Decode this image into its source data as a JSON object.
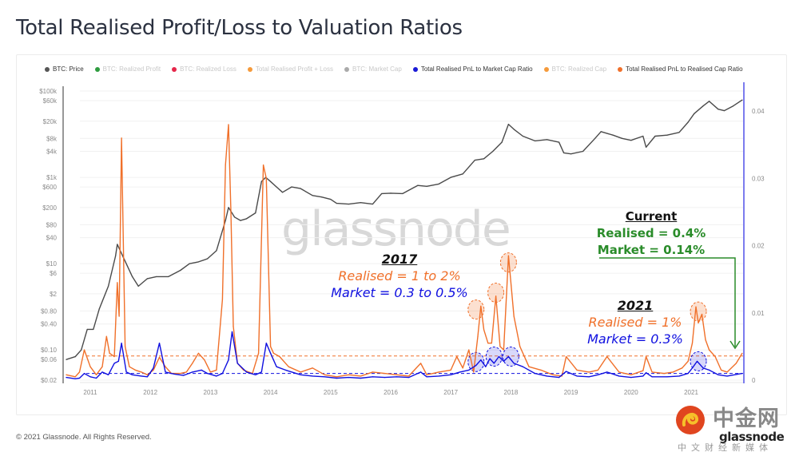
{
  "header": {
    "title": "Total Realised Profit/Loss to Valuation Ratios"
  },
  "legend": [
    {
      "label": "BTC: Price",
      "color": "#555555",
      "active": true
    },
    {
      "label": "BTC: Realized Profit",
      "color": "#2e9b3f",
      "active": false
    },
    {
      "label": "BTC: Realized Loss",
      "color": "#e5264a",
      "active": false
    },
    {
      "label": "Total Realised Profit + Loss",
      "color": "#f59a3b",
      "active": false
    },
    {
      "label": "BTC: Market Cap",
      "color": "#aaaaaa",
      "active": false
    },
    {
      "label": "Total Realised PnL to Market Cap Ratio",
      "color": "#1a1ad6",
      "active": true
    },
    {
      "label": "BTC: Realized Cap",
      "color": "#f59a3b",
      "active": false
    },
    {
      "label": "Total Realised PnL to Realised Cap Ratio",
      "color": "#f0702a",
      "active": true
    }
  ],
  "watermark": "glassnode",
  "annotations": {
    "y2017": {
      "heading": "2017",
      "realised": "Realised = 1 to 2%",
      "market": "Market = 0.3 to 0.5%"
    },
    "y2021": {
      "heading": "2021",
      "realised": "Realised = 1%",
      "market": "Market = 0.3%"
    },
    "current": {
      "heading": "Current",
      "realised": "Realised = 0.4%",
      "market": "Market = 0.14%"
    }
  },
  "footer": {
    "copyright": "© 2021 Glassnode. All Rights Reserved."
  },
  "logo": {
    "chinese": "中金网",
    "brand": "glassnode",
    "subtitle": "中文财经新媒体"
  },
  "colors": {
    "price": "#4a4a4a",
    "realised": "#f0702a",
    "market": "#1010e0",
    "current": "#2a8c2a",
    "axis_right": "#5050e8"
  },
  "chart_data": {
    "type": "line",
    "title": "Total Realised Profit/Loss to Valuation Ratios",
    "x_ticks": [
      "2011",
      "2012",
      "2013",
      "2014",
      "2015",
      "2016",
      "2017",
      "2018",
      "2019",
      "2020",
      "2021"
    ],
    "xlim": [
      2010.6,
      2021.85
    ],
    "y_left": {
      "scale": "log",
      "ticks": [
        "$100k",
        "$60k",
        "$20k",
        "$8k",
        "$4k",
        "$1k",
        "$600",
        "$200",
        "$80",
        "$40",
        "$10",
        "$6",
        "$2",
        "$0.80",
        "$0.40",
        "$0.10",
        "$0.06",
        "$0.02"
      ],
      "tick_values": [
        100000,
        60000,
        20000,
        8000,
        4000,
        1000,
        600,
        200,
        80,
        40,
        10,
        6,
        2,
        0.8,
        0.4,
        0.1,
        0.06,
        0.02
      ],
      "ylim": [
        0.02,
        100000
      ]
    },
    "y_right": {
      "scale": "linear",
      "ticks": [
        "0",
        "0.01",
        "0.02",
        "0.03",
        "0.04"
      ],
      "tick_values": [
        0,
        0.01,
        0.02,
        0.03,
        0.04
      ],
      "ylim": [
        0,
        0.0457
      ]
    },
    "reference_lines": [
      {
        "series": "Total Realised PnL to Realised Cap Ratio",
        "value": 0.0036,
        "style": "dashed"
      },
      {
        "series": "Total Realised PnL to Market Cap Ratio",
        "value": 0.001,
        "style": "dashed"
      }
    ],
    "series": [
      {
        "name": "BTC: Price",
        "axis": "left",
        "x": [
          2010.6,
          2010.75,
          2010.85,
          2010.95,
          2011.05,
          2011.15,
          2011.3,
          2011.42,
          2011.45,
          2011.55,
          2011.7,
          2011.8,
          2011.95,
          2012.1,
          2012.3,
          2012.5,
          2012.65,
          2012.8,
          2012.95,
          2013.1,
          2013.25,
          2013.3,
          2013.4,
          2013.5,
          2013.6,
          2013.75,
          2013.85,
          2013.92,
          2014.0,
          2014.1,
          2014.2,
          2014.35,
          2014.5,
          2014.7,
          2014.85,
          2015.0,
          2015.1,
          2015.3,
          2015.5,
          2015.7,
          2015.85,
          2016.0,
          2016.2,
          2016.45,
          2016.6,
          2016.8,
          2017.0,
          2017.2,
          2017.4,
          2017.55,
          2017.7,
          2017.85,
          2017.96,
          2018.05,
          2018.2,
          2018.4,
          2018.6,
          2018.8,
          2018.88,
          2019.0,
          2019.2,
          2019.4,
          2019.5,
          2019.7,
          2019.85,
          2020.0,
          2020.2,
          2020.25,
          2020.4,
          2020.6,
          2020.8,
          2020.95,
          2021.05,
          2021.2,
          2021.3,
          2021.45,
          2021.55,
          2021.7,
          2021.85
        ],
        "values": [
          0.06,
          0.07,
          0.1,
          0.3,
          0.3,
          0.9,
          3,
          15,
          28,
          14,
          5,
          3,
          4.5,
          5,
          5,
          7,
          10,
          11,
          13,
          20,
          100,
          200,
          120,
          100,
          110,
          150,
          800,
          1000,
          800,
          600,
          450,
          600,
          550,
          380,
          350,
          310,
          250,
          240,
          260,
          240,
          420,
          430,
          420,
          650,
          620,
          700,
          1000,
          1200,
          2500,
          2700,
          4000,
          6500,
          17000,
          13000,
          9000,
          7000,
          7500,
          6500,
          3700,
          3500,
          4000,
          8000,
          11500,
          9500,
          8000,
          7200,
          9000,
          5000,
          9000,
          9500,
          11000,
          19000,
          30000,
          45000,
          58000,
          38000,
          35000,
          45000,
          62000
        ]
      },
      {
        "name": "Total Realised PnL to Realised Cap Ratio",
        "axis": "right",
        "x": [
          2010.6,
          2010.75,
          2010.82,
          2010.9,
          2011.0,
          2011.1,
          2011.2,
          2011.27,
          2011.32,
          2011.4,
          2011.45,
          2011.48,
          2011.52,
          2011.58,
          2011.65,
          2011.75,
          2011.85,
          2011.95,
          2012.05,
          2012.15,
          2012.25,
          2012.35,
          2012.5,
          2012.6,
          2012.7,
          2012.8,
          2012.9,
          2013.0,
          2013.1,
          2013.2,
          2013.25,
          2013.3,
          2013.34,
          2013.38,
          2013.45,
          2013.55,
          2013.7,
          2013.8,
          2013.88,
          2013.93,
          2014.0,
          2014.05,
          2014.15,
          2014.3,
          2014.5,
          2014.7,
          2014.9,
          2015.1,
          2015.3,
          2015.5,
          2015.7,
          2015.9,
          2016.1,
          2016.3,
          2016.5,
          2016.6,
          2016.8,
          2017.0,
          2017.1,
          2017.2,
          2017.3,
          2017.38,
          2017.45,
          2017.5,
          2017.55,
          2017.62,
          2017.68,
          2017.75,
          2017.82,
          2017.88,
          2017.96,
          2018.05,
          2018.15,
          2018.3,
          2018.5,
          2018.7,
          2018.85,
          2018.92,
          2019.1,
          2019.3,
          2019.45,
          2019.6,
          2019.8,
          2020.0,
          2020.2,
          2020.25,
          2020.35,
          2020.55,
          2020.7,
          2020.85,
          2020.95,
          2021.02,
          2021.08,
          2021.12,
          2021.18,
          2021.24,
          2021.3,
          2021.4,
          2021.5,
          2021.6,
          2021.75,
          2021.85
        ],
        "values": [
          0.0008,
          0.0005,
          0.0012,
          0.0045,
          0.002,
          0.0008,
          0.002,
          0.0065,
          0.004,
          0.0035,
          0.0145,
          0.0095,
          0.036,
          0.005,
          0.002,
          0.0015,
          0.0012,
          0.0008,
          0.0015,
          0.0034,
          0.002,
          0.001,
          0.001,
          0.0012,
          0.0025,
          0.004,
          0.003,
          0.0012,
          0.0015,
          0.012,
          0.032,
          0.038,
          0.025,
          0.008,
          0.0025,
          0.0015,
          0.001,
          0.004,
          0.032,
          0.03,
          0.005,
          0.004,
          0.0035,
          0.002,
          0.0012,
          0.0018,
          0.0008,
          0.0005,
          0.0008,
          0.0006,
          0.0012,
          0.001,
          0.0008,
          0.0006,
          0.0025,
          0.0008,
          0.0012,
          0.0015,
          0.0035,
          0.0018,
          0.0045,
          0.0012,
          0.0065,
          0.011,
          0.0075,
          0.0055,
          0.0055,
          0.0125,
          0.005,
          0.0045,
          0.0185,
          0.0095,
          0.005,
          0.002,
          0.0015,
          0.0008,
          0.0006,
          0.0035,
          0.0015,
          0.0012,
          0.0015,
          0.0035,
          0.0012,
          0.0008,
          0.0014,
          0.0035,
          0.0012,
          0.001,
          0.0012,
          0.0018,
          0.0028,
          0.0055,
          0.0109,
          0.0085,
          0.0098,
          0.006,
          0.0045,
          0.0035,
          0.0015,
          0.0012,
          0.0025,
          0.004
        ]
      },
      {
        "name": "Total Realised PnL to Market Cap Ratio",
        "axis": "right",
        "x": [
          2010.6,
          2010.75,
          2010.82,
          2010.9,
          2011.0,
          2011.1,
          2011.2,
          2011.3,
          2011.4,
          2011.47,
          2011.52,
          2011.6,
          2011.7,
          2011.85,
          2011.95,
          2012.05,
          2012.15,
          2012.25,
          2012.4,
          2012.55,
          2012.7,
          2012.85,
          2012.95,
          2013.1,
          2013.2,
          2013.3,
          2013.36,
          2013.45,
          2013.6,
          2013.75,
          2013.85,
          2013.93,
          2014.0,
          2014.1,
          2014.25,
          2014.5,
          2014.7,
          2014.9,
          2015.1,
          2015.3,
          2015.5,
          2015.7,
          2015.9,
          2016.1,
          2016.3,
          2016.5,
          2016.6,
          2016.8,
          2017.0,
          2017.15,
          2017.3,
          2017.42,
          2017.5,
          2017.58,
          2017.65,
          2017.72,
          2017.8,
          2017.88,
          2017.96,
          2018.05,
          2018.2,
          2018.4,
          2018.6,
          2018.8,
          2018.92,
          2019.1,
          2019.3,
          2019.45,
          2019.6,
          2019.8,
          2020.0,
          2020.2,
          2020.25,
          2020.35,
          2020.6,
          2020.8,
          2020.95,
          2021.02,
          2021.1,
          2021.2,
          2021.3,
          2021.45,
          2021.6,
          2021.85
        ],
        "values": [
          0.0004,
          0.0002,
          0.0003,
          0.001,
          0.0005,
          0.0003,
          0.0012,
          0.0008,
          0.0025,
          0.0028,
          0.0055,
          0.0012,
          0.0008,
          0.0006,
          0.0005,
          0.0018,
          0.0055,
          0.0012,
          0.0009,
          0.0007,
          0.0012,
          0.0015,
          0.001,
          0.0006,
          0.001,
          0.003,
          0.0072,
          0.0025,
          0.0012,
          0.0008,
          0.0012,
          0.0055,
          0.004,
          0.002,
          0.0015,
          0.0008,
          0.0006,
          0.0005,
          0.0003,
          0.0004,
          0.0003,
          0.0005,
          0.0004,
          0.0005,
          0.0004,
          0.0012,
          0.0005,
          0.0006,
          0.0008,
          0.0012,
          0.0015,
          0.0022,
          0.003,
          0.002,
          0.0032,
          0.0025,
          0.0035,
          0.0028,
          0.0035,
          0.0025,
          0.002,
          0.001,
          0.0006,
          0.0004,
          0.0013,
          0.0006,
          0.0005,
          0.0008,
          0.0012,
          0.0006,
          0.0004,
          0.0006,
          0.0011,
          0.0005,
          0.0005,
          0.0006,
          0.001,
          0.0018,
          0.0028,
          0.0018,
          0.0015,
          0.0008,
          0.0006,
          0.001
        ]
      }
    ],
    "highlight_circles": [
      {
        "series": "Total Realised PnL to Realised Cap Ratio",
        "x": 2017.42,
        "value": 0.0105
      },
      {
        "series": "Total Realised PnL to Realised Cap Ratio",
        "x": 2017.75,
        "value": 0.013
      },
      {
        "series": "Total Realised PnL to Realised Cap Ratio",
        "x": 2017.96,
        "value": 0.0175
      },
      {
        "series": "Total Realised PnL to Market Cap Ratio",
        "x": 2017.42,
        "value": 0.0027
      },
      {
        "series": "Total Realised PnL to Market Cap Ratio",
        "x": 2017.72,
        "value": 0.0035
      },
      {
        "series": "Total Realised PnL to Market Cap Ratio",
        "x": 2018.0,
        "value": 0.0035
      },
      {
        "series": "Total Realised PnL to Realised Cap Ratio",
        "x": 2021.12,
        "value": 0.0102
      },
      {
        "series": "Total Realised PnL to Market Cap Ratio",
        "x": 2021.12,
        "value": 0.0028
      }
    ]
  }
}
